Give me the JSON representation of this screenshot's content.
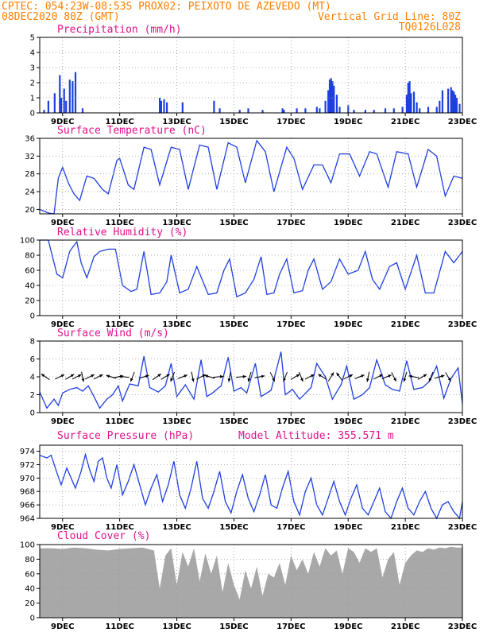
{
  "header": {
    "line1_left": "CPTEC:   054:23W-08:53S   PROX02: PEIXOTO DE AZEVEDO (MT)",
    "line2_left": "08DEC2020 80Z (GMT)",
    "line2_right": "Vertical Grid Line: 80Z",
    "line3_right": "TQ0126L028"
  },
  "colors": {
    "header": "#ff7f00",
    "title": "#e0108c",
    "line": "#1f3fdf",
    "bar": "#1f3fdf",
    "cloud": "#a8a8a8",
    "grid": "#999999"
  },
  "x_ticks": [
    "9DEC",
    "11DEC",
    "13DEC",
    "15DEC",
    "17DEC",
    "19DEC",
    "21DEC",
    "23DEC"
  ],
  "x_tick_days": [
    9,
    11,
    13,
    15,
    17,
    19,
    21,
    23
  ],
  "chart_data": [
    {
      "type": "bar",
      "title": "Precipitation (mm/h)",
      "xlim": [
        8.2,
        23
      ],
      "ylim": [
        0,
        5
      ],
      "yticks": [
        0,
        1,
        2,
        3,
        4,
        5
      ],
      "x": [
        8.35,
        8.5,
        8.72,
        8.9,
        8.95,
        9.05,
        9.12,
        9.25,
        9.35,
        9.45,
        9.7,
        12.4,
        12.45,
        12.55,
        12.65,
        13.2,
        14.3,
        14.5,
        15.2,
        15.5,
        16.0,
        16.7,
        16.75,
        17.2,
        17.5,
        17.9,
        18.0,
        18.2,
        18.3,
        18.35,
        18.4,
        18.45,
        18.5,
        18.6,
        18.7,
        19.0,
        19.2,
        19.6,
        19.9,
        20.3,
        20.6,
        20.9,
        21.05,
        21.1,
        21.15,
        21.2,
        21.3,
        21.4,
        21.5,
        21.8,
        22.1,
        22.2,
        22.3,
        22.5,
        22.6,
        22.65,
        22.7,
        22.75,
        22.8,
        22.9
      ],
      "values": [
        0.2,
        0.8,
        1.3,
        2.5,
        1.0,
        1.6,
        0.8,
        2.2,
        2.1,
        2.7,
        0.3,
        1.0,
        0.8,
        0.9,
        0.7,
        0.7,
        0.8,
        0.3,
        0.2,
        0.3,
        0.2,
        0.3,
        0.2,
        0.3,
        0.3,
        0.4,
        0.3,
        0.8,
        1.5,
        2.2,
        2.3,
        2.1,
        1.8,
        1.2,
        0.4,
        0.5,
        0.2,
        0.2,
        0.2,
        0.3,
        0.3,
        0.4,
        1.2,
        2.0,
        2.1,
        1.3,
        1.4,
        0.7,
        0.3,
        0.4,
        0.4,
        0.8,
        1.5,
        1.6,
        1.7,
        1.5,
        1.4,
        1.2,
        1.0,
        0.6
      ]
    },
    {
      "type": "line",
      "title": "Surface Temperature (nC)",
      "xlim": [
        8.2,
        23
      ],
      "ylim": [
        19,
        36
      ],
      "yticks": [
        20,
        24,
        28,
        32,
        36
      ],
      "x": [
        8.2,
        8.5,
        8.7,
        8.85,
        9.0,
        9.2,
        9.4,
        9.6,
        9.85,
        10.1,
        10.4,
        10.6,
        10.9,
        11.0,
        11.3,
        11.5,
        11.85,
        12.1,
        12.4,
        12.8,
        13.1,
        13.4,
        13.8,
        14.1,
        14.4,
        14.8,
        15.1,
        15.4,
        15.8,
        16.1,
        16.4,
        16.85,
        17.1,
        17.4,
        17.8,
        18.1,
        18.4,
        18.7,
        19.05,
        19.4,
        19.75,
        20.0,
        20.4,
        20.7,
        21.1,
        21.4,
        21.8,
        22.1,
        22.4,
        22.7,
        23.0
      ],
      "values": [
        20,
        19.2,
        19,
        27,
        29.5,
        26,
        23.5,
        22,
        27.5,
        27,
        24.5,
        23.5,
        31,
        31.5,
        25.5,
        24.5,
        34,
        33.5,
        25.5,
        34,
        33.5,
        24.5,
        34.5,
        34,
        24.5,
        35,
        34,
        26,
        35.5,
        33,
        24,
        34,
        31.5,
        24.5,
        30,
        30,
        26,
        32.5,
        32.5,
        27.5,
        33,
        32.5,
        25,
        33,
        32.5,
        25,
        33.5,
        32,
        23,
        27.5,
        27
      ]
    },
    {
      "type": "line",
      "title": "Relative Humidity (%)",
      "xlim": [
        8.2,
        23
      ],
      "ylim": [
        0,
        100
      ],
      "yticks": [
        0,
        20,
        40,
        60,
        80,
        100
      ],
      "x": [
        8.2,
        8.5,
        8.8,
        9.0,
        9.25,
        9.5,
        9.65,
        9.85,
        10.1,
        10.3,
        10.6,
        10.85,
        11.1,
        11.4,
        11.6,
        11.85,
        12.1,
        12.4,
        12.65,
        12.8,
        13.1,
        13.4,
        13.7,
        14.1,
        14.4,
        14.65,
        14.85,
        15.1,
        15.4,
        15.7,
        15.95,
        16.15,
        16.4,
        16.6,
        16.85,
        17.1,
        17.4,
        17.6,
        17.8,
        18.1,
        18.4,
        18.7,
        19.0,
        19.35,
        19.6,
        19.85,
        20.1,
        20.45,
        20.7,
        21.0,
        21.4,
        21.7,
        22.0,
        22.4,
        22.7,
        23.0
      ],
      "values": [
        100,
        100,
        55,
        50,
        85,
        98,
        70,
        50,
        78,
        85,
        88,
        88,
        40,
        32,
        35,
        85,
        28,
        30,
        45,
        80,
        30,
        35,
        65,
        28,
        30,
        60,
        75,
        25,
        30,
        48,
        78,
        28,
        30,
        55,
        75,
        30,
        33,
        60,
        75,
        35,
        45,
        75,
        55,
        60,
        85,
        48,
        35,
        65,
        70,
        35,
        80,
        30,
        30,
        85,
        70,
        85
      ]
    },
    {
      "type": "line",
      "title": "Surface Wind (m/s)",
      "xlim": [
        8.2,
        23
      ],
      "ylim": [
        0,
        8
      ],
      "yticks": [
        0,
        2,
        4,
        6,
        8
      ],
      "x": [
        8.2,
        8.45,
        8.7,
        8.85,
        9.0,
        9.25,
        9.5,
        9.7,
        9.9,
        10.1,
        10.3,
        10.55,
        10.75,
        10.95,
        11.1,
        11.35,
        11.65,
        11.85,
        12.05,
        12.35,
        12.6,
        12.8,
        13.0,
        13.3,
        13.6,
        13.85,
        14.05,
        14.25,
        14.55,
        14.8,
        15.0,
        15.25,
        15.45,
        15.75,
        15.95,
        16.3,
        16.65,
        16.8,
        17.05,
        17.3,
        17.7,
        17.9,
        18.2,
        18.45,
        18.75,
        18.95,
        19.2,
        19.5,
        19.75,
        20.0,
        20.3,
        20.55,
        20.8,
        21.05,
        21.3,
        21.6,
        21.85,
        22.1,
        22.35,
        22.6,
        22.85,
        23.0
      ],
      "values": [
        2.3,
        0.5,
        1.5,
        0.8,
        2.2,
        2.6,
        2.8,
        2.4,
        3.0,
        1.8,
        0.5,
        1.5,
        2.0,
        3.0,
        1.3,
        3.2,
        3.0,
        6.3,
        2.8,
        2.3,
        3.0,
        5.5,
        1.8,
        3.1,
        1.5,
        5.9,
        1.8,
        2.2,
        3.0,
        6.2,
        2.4,
        2.8,
        2.2,
        5.5,
        1.8,
        2.5,
        6.8,
        2.0,
        2.6,
        1.5,
        2.8,
        5.5,
        4.0,
        1.5,
        3.1,
        5.2,
        1.5,
        2.0,
        2.8,
        5.9,
        3.1,
        2.6,
        2.4,
        5.8,
        2.6,
        2.8,
        3.5,
        5.2,
        1.6,
        3.8,
        5.0,
        1.0
      ],
      "arrows": [
        {
          "x": 8.4,
          "u": -1,
          "v": 0.7
        },
        {
          "x": 8.9,
          "u": 1,
          "v": 0.5
        },
        {
          "x": 9.25,
          "u": 1,
          "v": 0.6
        },
        {
          "x": 9.5,
          "u": 1,
          "v": 0.5
        },
        {
          "x": 9.7,
          "u": 0.2,
          "v": -1
        },
        {
          "x": 9.95,
          "u": 1,
          "v": 0.5
        },
        {
          "x": 10.25,
          "u": 1,
          "v": 0.5
        },
        {
          "x": 10.7,
          "u": -1,
          "v": 0.3
        },
        {
          "x": 10.95,
          "u": 1,
          "v": 0.2
        },
        {
          "x": 11.15,
          "u": -1,
          "v": 0.1
        },
        {
          "x": 11.45,
          "u": -0.4,
          "v": -1
        },
        {
          "x": 11.85,
          "u": 1,
          "v": 0.3
        },
        {
          "x": 12.3,
          "u": 1,
          "v": 0.7
        },
        {
          "x": 12.6,
          "u": 1,
          "v": 0.6
        },
        {
          "x": 12.85,
          "u": -0.4,
          "v": -1
        },
        {
          "x": 13.2,
          "u": 1,
          "v": 0.4
        },
        {
          "x": 13.55,
          "u": 0.2,
          "v": -1
        },
        {
          "x": 13.85,
          "u": 1,
          "v": 0.5
        },
        {
          "x": 14.15,
          "u": -1,
          "v": 0.3
        },
        {
          "x": 14.45,
          "u": 1,
          "v": 0.1
        },
        {
          "x": 14.85,
          "u": -0.2,
          "v": -1
        },
        {
          "x": 15.25,
          "u": 1,
          "v": 0.1
        },
        {
          "x": 15.55,
          "u": -0.3,
          "v": -1
        },
        {
          "x": 15.9,
          "u": 1,
          "v": 0.2
        },
        {
          "x": 16.35,
          "u": 0.5,
          "v": -1
        },
        {
          "x": 16.8,
          "u": -0.4,
          "v": -1
        },
        {
          "x": 17.15,
          "u": 1,
          "v": 0.6
        },
        {
          "x": 17.35,
          "u": 0.4,
          "v": -1
        },
        {
          "x": 17.65,
          "u": 1,
          "v": 0.5
        },
        {
          "x": 18.1,
          "u": -1,
          "v": 0.6
        },
        {
          "x": 18.4,
          "u": 0.6,
          "v": 1
        },
        {
          "x": 18.7,
          "u": -0.6,
          "v": 0.8
        },
        {
          "x": 19.0,
          "u": 1,
          "v": 0.5
        },
        {
          "x": 19.4,
          "u": 1,
          "v": 0.4
        },
        {
          "x": 19.7,
          "u": -0.2,
          "v": -1
        },
        {
          "x": 20.05,
          "u": 1,
          "v": 0.5
        },
        {
          "x": 20.35,
          "u": 1,
          "v": 0.4
        },
        {
          "x": 20.6,
          "u": 0.5,
          "v": -1
        },
        {
          "x": 21.0,
          "u": -0.3,
          "v": -1
        },
        {
          "x": 21.3,
          "u": -1,
          "v": 0.2
        },
        {
          "x": 21.6,
          "u": 1,
          "v": 0.6
        },
        {
          "x": 21.9,
          "u": -0.4,
          "v": -1
        },
        {
          "x": 22.2,
          "u": 1,
          "v": 0.3
        },
        {
          "x": 22.5,
          "u": 0.6,
          "v": -1
        }
      ]
    },
    {
      "type": "line",
      "title": "Surface Pressure (hPa)",
      "annotation": "Model Altitude: 355.571 m",
      "xlim": [
        8.2,
        23
      ],
      "ylim": [
        964,
        974.9
      ],
      "yticks": [
        964,
        966,
        968,
        970,
        972,
        974
      ],
      "x": [
        8.2,
        8.45,
        8.6,
        8.8,
        8.95,
        9.15,
        9.3,
        9.45,
        9.65,
        9.8,
        9.95,
        10.1,
        10.25,
        10.4,
        10.55,
        10.7,
        10.9,
        11.1,
        11.3,
        11.5,
        11.7,
        11.9,
        12.1,
        12.3,
        12.5,
        12.7,
        12.9,
        13.1,
        13.3,
        13.5,
        13.7,
        13.9,
        14.1,
        14.3,
        14.5,
        14.7,
        14.9,
        15.1,
        15.3,
        15.5,
        15.7,
        15.9,
        16.1,
        16.3,
        16.5,
        16.7,
        16.9,
        17.1,
        17.3,
        17.5,
        17.7,
        17.9,
        18.1,
        18.3,
        18.5,
        18.7,
        18.9,
        19.1,
        19.3,
        19.5,
        19.7,
        19.9,
        20.1,
        20.3,
        20.5,
        20.7,
        20.9,
        21.1,
        21.3,
        21.5,
        21.7,
        21.9,
        22.1,
        22.3,
        22.5,
        22.7,
        22.9,
        23.0
      ],
      "values": [
        973.4,
        973.0,
        973.4,
        970.8,
        969.0,
        971.5,
        970.0,
        968.5,
        971.0,
        973.5,
        971.2,
        969.5,
        972.5,
        973.0,
        970.0,
        968.5,
        972.0,
        967.5,
        969.5,
        972.0,
        969.0,
        966.0,
        968.5,
        970.5,
        966.5,
        969.0,
        972.5,
        967.5,
        965.5,
        968.5,
        972.5,
        967.0,
        965.5,
        968.0,
        971.0,
        966.5,
        964.8,
        968.0,
        970.5,
        967.0,
        965.0,
        967.5,
        970.5,
        966.0,
        965.5,
        968.5,
        971.0,
        966.5,
        964.5,
        968.0,
        970.0,
        966.0,
        964.5,
        967.0,
        969.5,
        966.5,
        964.5,
        967.0,
        969.0,
        965.5,
        964.5,
        966.5,
        968.5,
        965.0,
        964.0,
        966.5,
        968.5,
        965.5,
        964.5,
        966.5,
        968.0,
        965.5,
        964.0,
        966.0,
        966.5,
        965.0,
        964.0,
        966.5
      ]
    },
    {
      "type": "area",
      "title": "Cloud Cover (%)",
      "xlim": [
        8.2,
        23
      ],
      "ylim": [
        0,
        100
      ],
      "yticks": [
        0,
        20,
        40,
        60,
        80,
        100
      ],
      "x": [
        8.2,
        8.6,
        9.0,
        9.4,
        9.8,
        10.2,
        10.6,
        11.0,
        11.4,
        11.8,
        12.2,
        12.4,
        12.6,
        12.8,
        13.0,
        13.2,
        13.4,
        13.6,
        13.8,
        14.0,
        14.2,
        14.4,
        14.6,
        14.8,
        15.0,
        15.2,
        15.4,
        15.6,
        15.8,
        16.0,
        16.2,
        16.4,
        16.6,
        16.8,
        17.0,
        17.2,
        17.4,
        17.6,
        17.8,
        18.0,
        18.2,
        18.4,
        18.6,
        18.8,
        19.0,
        19.2,
        19.4,
        19.6,
        19.8,
        20.0,
        20.2,
        20.4,
        20.6,
        20.8,
        21.0,
        21.2,
        21.4,
        21.6,
        21.8,
        22.0,
        22.2,
        22.4,
        22.6,
        22.8,
        23.0
      ],
      "values": [
        95,
        95,
        94,
        96,
        95,
        93,
        92,
        94,
        95,
        96,
        92,
        40,
        85,
        95,
        45,
        90,
        70,
        95,
        50,
        88,
        60,
        85,
        35,
        75,
        45,
        25,
        65,
        40,
        70,
        30,
        60,
        55,
        75,
        45,
        85,
        65,
        80,
        60,
        90,
        70,
        95,
        85,
        92,
        60,
        95,
        90,
        75,
        95,
        90,
        95,
        55,
        80,
        90,
        45,
        75,
        85,
        92,
        90,
        95,
        93,
        96,
        95,
        97,
        96,
        96
      ]
    }
  ]
}
